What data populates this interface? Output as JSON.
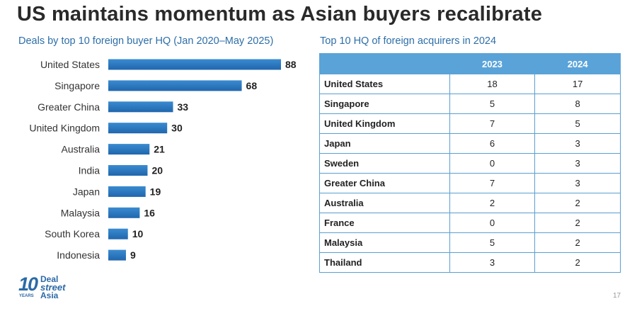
{
  "title": "US maintains momentum as Asian buyers recalibrate",
  "chart_data": {
    "type": "bar",
    "orientation": "horizontal",
    "title": "Deals by top 10 foreign buyer HQ (Jan 2020–May 2025)",
    "categories": [
      "United States",
      "Singapore",
      "Greater China",
      "United Kingdom",
      "Australia",
      "India",
      "Japan",
      "Malaysia",
      "South Korea",
      "Indonesia"
    ],
    "values": [
      88,
      68,
      33,
      30,
      21,
      20,
      19,
      16,
      10,
      9
    ],
    "xlim": [
      0,
      88
    ],
    "grid": false,
    "colors": {
      "bar_top": "#3a8bd0",
      "bar_bottom": "#2066ad"
    }
  },
  "table": {
    "title": "Top 10 HQ of foreign acquirers in 2024",
    "columns": [
      "",
      "2023",
      "2024"
    ],
    "rows": [
      [
        "United States",
        "18",
        "17"
      ],
      [
        "Singapore",
        "5",
        "8"
      ],
      [
        "United Kingdom",
        "7",
        "5"
      ],
      [
        "Japan",
        "6",
        "3"
      ],
      [
        "Sweden",
        "0",
        "3"
      ],
      [
        "Greater China",
        "7",
        "3"
      ],
      [
        "Australia",
        "2",
        "2"
      ],
      [
        "France",
        "0",
        "2"
      ],
      [
        "Malaysia",
        "5",
        "2"
      ],
      [
        "Thailand",
        "3",
        "2"
      ]
    ],
    "header_color": "#5aa3d8"
  },
  "logo": {
    "number": "10",
    "years": "YEARS",
    "line1": "Deal",
    "line2": "street",
    "line3": "Asia"
  },
  "page_number": "17"
}
